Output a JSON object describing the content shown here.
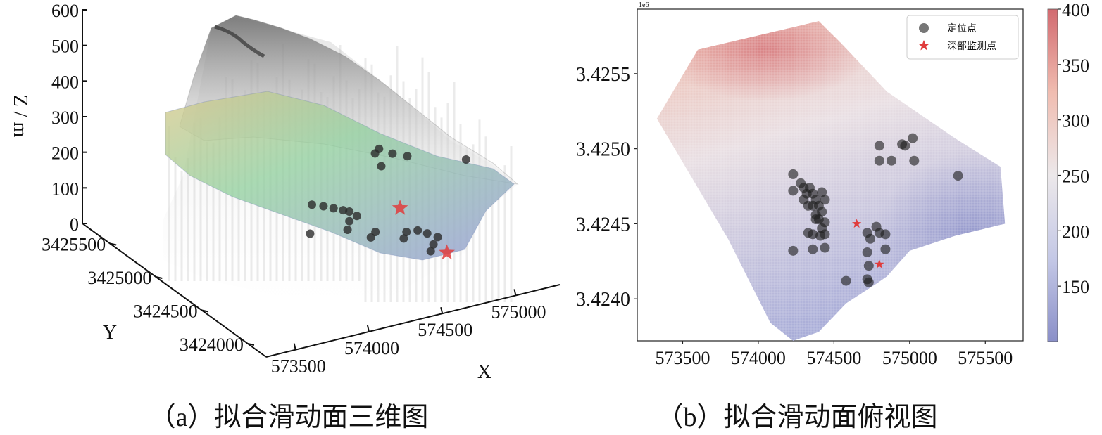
{
  "captions": {
    "a": "（a）拟合滑动面三维图",
    "b": "（b）拟合滑动面俯视图"
  },
  "chart_data": [
    {
      "type": "scatter",
      "panel": "a",
      "projection": "3d",
      "xlabel": "X",
      "ylabel": "Y",
      "zlabel": "Z / m",
      "x_ticks": [
        "573500",
        "574000",
        "574500",
        "575000"
      ],
      "y_ticks": [
        "3424000",
        "3424500",
        "3425000",
        "3425500"
      ],
      "z_ticks": [
        "0",
        "100",
        "200",
        "300",
        "400",
        "500",
        "600"
      ],
      "xlim": [
        573300,
        575300
      ],
      "ylim": [
        3423800,
        3425800
      ],
      "zlim": [
        0,
        600
      ],
      "surfaces": [
        {
          "color": "#8a8a8a",
          "role": "terrain"
        },
        {
          "color": "#7fbf8f",
          "role": "fitted-sliding-surface"
        }
      ],
      "series": [
        {
          "marker": "circle",
          "color": "#2b2b2b",
          "points": [
            [
              574250,
              3424820,
              140
            ],
            [
              574310,
              3424790,
              135
            ],
            [
              574360,
              3424760,
              130
            ],
            [
              574400,
              3424720,
              128
            ],
            [
              574430,
              3424700,
              125
            ],
            [
              574450,
              3424650,
              120
            ],
            [
              574380,
              3424620,
              118
            ],
            [
              574330,
              3424560,
              110
            ],
            [
              574420,
              3424450,
              100
            ],
            [
              574470,
              3424480,
              105
            ],
            [
              574780,
              3424980,
              200
            ],
            [
              574820,
              3425000,
              205
            ],
            [
              574880,
              3424950,
              195
            ],
            [
              574950,
              3424900,
              190
            ],
            [
              574760,
              3424880,
              185
            ],
            [
              574720,
              3424420,
              95
            ],
            [
              574760,
              3424380,
              90
            ],
            [
              574800,
              3424330,
              85
            ],
            [
              574740,
              3424280,
              80
            ],
            [
              574690,
              3424230,
              75
            ],
            [
              574600,
              3424380,
              92
            ],
            [
              574650,
              3424430,
              96
            ],
            [
              575300,
              3424820,
              160
            ],
            [
              574100,
              3424600,
              115
            ]
          ]
        },
        {
          "marker": "star",
          "color": "#e03c3c",
          "points": [
            [
              574650,
              3424500,
              150
            ],
            [
              574800,
              3424230,
              60
            ]
          ]
        }
      ]
    },
    {
      "type": "scatter",
      "panel": "b",
      "offset_label": "1e6",
      "x_ticks": [
        "573500",
        "574000",
        "574500",
        "575000",
        "575500"
      ],
      "y_ticks": [
        "3.4240",
        "3.4245",
        "3.4250",
        "3.4255"
      ],
      "xlim": [
        573200,
        575750
      ],
      "ylim": [
        3.42372,
        3.42593
      ],
      "legend": {
        "position": "top-right",
        "entries": [
          {
            "label": "定位点",
            "marker": "circle",
            "color": "#555555"
          },
          {
            "label": "深部监测点",
            "marker": "star",
            "color": "#e03c3c"
          }
        ]
      },
      "colorbar": {
        "min": 100,
        "max": 400,
        "ticks": [
          "150",
          "200",
          "250",
          "300",
          "350",
          "400"
        ],
        "colormap": "coolwarm",
        "colors": [
          "#8a8fc8",
          "#c4c8e6",
          "#ece8ea",
          "#f0bcb0",
          "#d26a70"
        ]
      },
      "surface_boundary": [
        [
          573330,
          3.4252
        ],
        [
          573600,
          3.42566
        ],
        [
          574400,
          3.42585
        ],
        [
          574550,
          3.4257
        ],
        [
          574850,
          3.42538
        ],
        [
          575300,
          3.42507
        ],
        [
          575600,
          3.42488
        ],
        [
          575630,
          3.4245
        ],
        [
          575300,
          3.42442
        ],
        [
          575000,
          3.42432
        ],
        [
          574850,
          3.42415
        ],
        [
          574780,
          3.4241
        ],
        [
          574580,
          3.42397
        ],
        [
          574400,
          3.42378
        ],
        [
          574230,
          3.42372
        ],
        [
          574080,
          3.42384
        ],
        [
          573800,
          3.4244
        ]
      ],
      "surface_peak": {
        "x": 574050,
        "y": 3.42567,
        "value": 400
      },
      "surface_low": {
        "x": 575400,
        "y": 3.42445,
        "value": 110
      },
      "series": [
        {
          "name": "定位点",
          "marker": "circle",
          "color": "#1e1e1e",
          "points": [
            [
              574230,
              3.42483
            ],
            [
              574280,
              3.42477
            ],
            [
              574230,
              3.42472
            ],
            [
              574300,
              3.42474
            ],
            [
              574320,
              3.4247
            ],
            [
              574340,
              3.42474
            ],
            [
              574360,
              3.4247
            ],
            [
              574380,
              3.42466
            ],
            [
              574420,
              3.42471
            ],
            [
              574440,
              3.42466
            ],
            [
              574300,
              3.42466
            ],
            [
              574330,
              3.42462
            ],
            [
              574360,
              3.42462
            ],
            [
              574400,
              3.42462
            ],
            [
              574420,
              3.42458
            ],
            [
              574380,
              3.42456
            ],
            [
              574400,
              3.42453
            ],
            [
              574440,
              3.42451
            ],
            [
              574420,
              3.42447
            ],
            [
              574380,
              3.42453
            ],
            [
              574440,
              3.42443
            ],
            [
              574330,
              3.42444
            ],
            [
              574360,
              3.42443
            ],
            [
              574410,
              3.42442
            ],
            [
              574360,
              3.42433
            ],
            [
              574440,
              3.42434
            ],
            [
              574230,
              3.42432
            ],
            [
              574580,
              3.42412
            ],
            [
              574720,
              3.42444
            ],
            [
              574740,
              3.4244
            ],
            [
              574800,
              3.42444
            ],
            [
              574780,
              3.42448
            ],
            [
              574840,
              3.42443
            ],
            [
              574720,
              3.42431
            ],
            [
              574840,
              3.42433
            ],
            [
              574730,
              3.42422
            ],
            [
              574720,
              3.42413
            ],
            [
              574730,
              3.42411
            ],
            [
              574800,
              3.42502
            ],
            [
              574950,
              3.42503
            ],
            [
              574970,
              3.42502
            ],
            [
              575020,
              3.42507
            ],
            [
              574800,
              3.42492
            ],
            [
              574880,
              3.42492
            ],
            [
              575030,
              3.42492
            ],
            [
              575320,
              3.42482
            ]
          ]
        },
        {
          "name": "深部监测点",
          "marker": "star",
          "color": "#e03c3c",
          "points": [
            [
              574650,
              3.4245
            ],
            [
              574800,
              3.42423
            ]
          ]
        }
      ]
    }
  ]
}
